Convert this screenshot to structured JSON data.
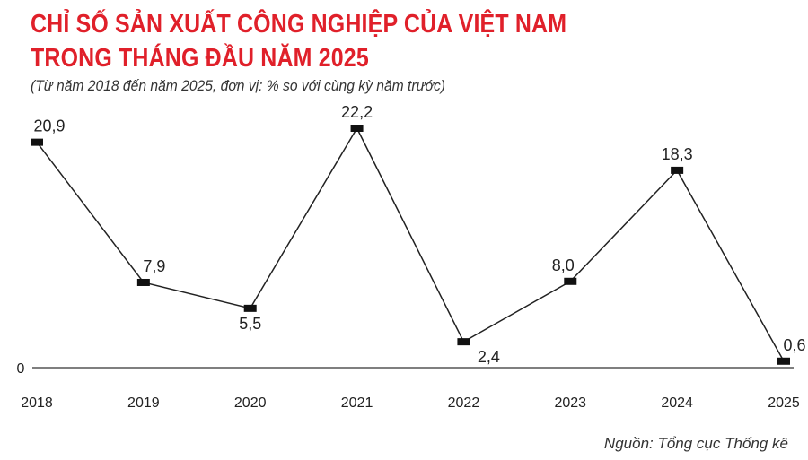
{
  "title_line1": "CHỈ SỐ SẢN XUẤT CÔNG NGHIỆP CỦA VIỆT NAM",
  "title_line2": "TRONG THÁNG ĐẦU NĂM 2025",
  "subtitle": "(Từ năm 2018 đến năm 2025, đơn vị: % so với cùng kỳ năm trước)",
  "source": "Nguồn: Tổng cục Thống kê",
  "colors": {
    "title": "#e0202a",
    "highlight": "#e0202a",
    "line": "#222222",
    "marker": "#111111",
    "axis": "#333333"
  },
  "chart_data": {
    "type": "line",
    "title": "CHỈ SỐ SẢN XUẤT CÔNG NGHIỆP CỦA VIỆT NAM TRONG THÁNG ĐẦU NĂM 2025",
    "subtitle": "(Từ năm 2018 đến năm 2025, đơn vị: % so với cùng kỳ năm trước)",
    "categories": [
      "2018",
      "2019",
      "2020",
      "2021",
      "2022",
      "2023",
      "2024",
      "2025"
    ],
    "values": [
      20.9,
      7.9,
      5.5,
      22.2,
      2.4,
      8.0,
      18.3,
      0.6
    ],
    "labels": [
      "20,9",
      "7,9",
      "5,5",
      "22,2",
      "2,4",
      "8,0",
      "18,3",
      "0,6"
    ],
    "highlight_index": 7,
    "y_tick_labels": [
      "0"
    ],
    "ylim": [
      0,
      22.2
    ],
    "xlabel": "",
    "ylabel": "",
    "grid": false,
    "marker": "rectangle"
  }
}
